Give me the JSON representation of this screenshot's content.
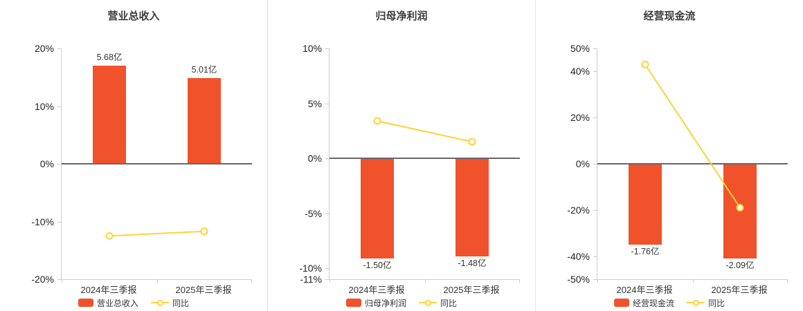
{
  "page": {
    "background": "#ffffff"
  },
  "colors": {
    "bar": "#f0522b",
    "line": "#ffd234",
    "marker_fill": "#ffffff",
    "zero_axis": "#666666",
    "axis_border": "#cccccc",
    "divider": "#e3e3e3",
    "title_text": "#3c3c3c",
    "tick_text": "#222222",
    "label_text": "#333333"
  },
  "chart_data": [
    {
      "type": "bar",
      "title": "营业总收入",
      "categories": [
        "2024年三季报",
        "2025年三季报"
      ],
      "ylim": [
        -20,
        20
      ],
      "yticks": [
        "20%",
        "10%",
        "0%",
        "-10%",
        "-20%"
      ],
      "ytick_values": [
        20,
        10,
        0,
        -10,
        -20
      ],
      "grid": false,
      "legend_position": "bottom",
      "series": [
        {
          "name": "营业总收入",
          "type": "bar",
          "unit": "亿",
          "values": [
            5.68,
            5.01
          ],
          "values_label": [
            "5.68亿",
            "5.01亿"
          ],
          "plot_pct": [
            17.0,
            14.9
          ],
          "label_position": "above"
        },
        {
          "name": "同比",
          "type": "line",
          "unit": "%",
          "values_pct": [
            -12.5,
            -11.7
          ]
        }
      ]
    },
    {
      "type": "bar",
      "title": "归母净利润",
      "categories": [
        "2024年三季报",
        "2025年三季报"
      ],
      "ylim": [
        -11,
        10
      ],
      "yticks": [
        "10%",
        "5%",
        "0%",
        "-5%",
        "-10%",
        "-11%"
      ],
      "ytick_values": [
        10,
        5,
        0,
        -5,
        -10,
        -11
      ],
      "grid": false,
      "legend_position": "bottom",
      "series": [
        {
          "name": "归母净利润",
          "type": "bar",
          "unit": "亿",
          "values": [
            -1.5,
            -1.48
          ],
          "values_label": [
            "-1.50亿",
            "-1.48亿"
          ],
          "plot_pct": [
            -9.1,
            -8.9
          ],
          "label_position": "below"
        },
        {
          "name": "同比",
          "type": "line",
          "unit": "%",
          "values_pct": [
            3.4,
            1.5
          ]
        }
      ]
    },
    {
      "type": "bar",
      "title": "经营现金流",
      "categories": [
        "2024年三季报",
        "2025年三季报"
      ],
      "ylim": [
        -50,
        50
      ],
      "yticks": [
        "50%",
        "40%",
        "20%",
        "0%",
        "-20%",
        "-40%",
        "-50%"
      ],
      "ytick_values": [
        50,
        40,
        20,
        0,
        -20,
        -40,
        -50
      ],
      "grid": false,
      "legend_position": "bottom",
      "series": [
        {
          "name": "经营现金流",
          "type": "bar",
          "unit": "亿",
          "values": [
            -1.76,
            -2.09
          ],
          "values_label": [
            "-1.76亿",
            "-2.09亿"
          ],
          "plot_pct": [
            -35,
            -41
          ],
          "label_position": "below"
        },
        {
          "name": "同比",
          "type": "line",
          "unit": "%",
          "values_pct": [
            43,
            -19
          ]
        }
      ]
    }
  ]
}
